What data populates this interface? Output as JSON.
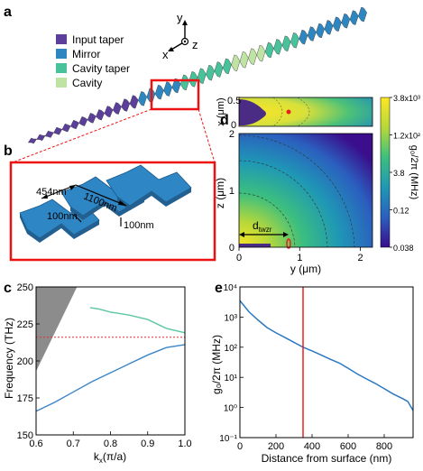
{
  "panels": {
    "a": {
      "label": "a",
      "legend": [
        {
          "name": "Input taper",
          "color": "#5b3f9a"
        },
        {
          "name": "Mirror",
          "color": "#2e86c1"
        },
        {
          "name": "Cavity taper",
          "color": "#48c29a"
        },
        {
          "name": "Cavity",
          "color": "#bfe3a3"
        }
      ],
      "axes": {
        "x": "x",
        "y": "y",
        "z": "z"
      }
    },
    "b": {
      "label": "b",
      "dims": {
        "a": "454nm",
        "b": "1100nm",
        "c": "100nm",
        "d": "100nm"
      }
    },
    "d": {
      "label": "d",
      "top_ylabel": "x (μm)",
      "top_yticks": [
        "0.5",
        "0"
      ],
      "ylabel": "z (μm)",
      "yticks": [
        "2",
        "1",
        "0"
      ],
      "xlabel": "y (μm)",
      "xticks": [
        "0",
        "1",
        "2"
      ],
      "annotation": "d",
      "annotation_sub": "twzr",
      "colorbar_label": "g₀/2π (MHz)",
      "colorbar_ticks": [
        "3.8x10³",
        "1.2x10²",
        "3.8",
        "0.12",
        "0.038"
      ],
      "colormap": [
        "#3a0e8c",
        "#2b5fbf",
        "#1f98b5",
        "#3cbf7e",
        "#b7d83a",
        "#fde624"
      ]
    }
  },
  "chart_data": [
    {
      "id": "c",
      "label": "c",
      "type": "line",
      "xlabel": "k",
      "xlabel_sub": "x",
      "xlabel_suffix": "(π/a)",
      "ylabel": "Frequency (THz)",
      "xlim": [
        0.6,
        1.0
      ],
      "ylim": [
        150,
        250
      ],
      "xticks": [
        "0.6",
        "0.7",
        "0.8",
        "0.9",
        "1.0"
      ],
      "yticks": [
        "150",
        "175",
        "200",
        "225",
        "250"
      ],
      "light_cone": {
        "x": [
          0.6,
          0.6,
          0.71
        ],
        "y": [
          193,
          250,
          250
        ],
        "color": "#8c8c8c"
      },
      "reference_line": {
        "y": 216,
        "color": "#e03030"
      },
      "series": [
        {
          "color": "#3a86c8",
          "x": [
            0.6,
            0.65,
            0.7,
            0.75,
            0.8,
            0.85,
            0.9,
            0.95,
            1.0
          ],
          "y": [
            166,
            172,
            179,
            186,
            192,
            198,
            204,
            209,
            211
          ]
        },
        {
          "color": "#5cc7a0",
          "x": [
            0.745,
            0.77,
            0.8,
            0.85,
            0.9,
            0.95,
            1.0
          ],
          "y": [
            236,
            235,
            233,
            231,
            228,
            222,
            219
          ]
        }
      ]
    },
    {
      "id": "e",
      "label": "e",
      "type": "line",
      "xlabel": "Distance from surface (nm)",
      "ylabel": "g₀/2π (MHz)",
      "xlim": [
        0,
        960
      ],
      "ylim_log10": [
        -1,
        4
      ],
      "xticks": [
        0,
        200,
        400,
        600,
        800
      ],
      "yticks": [
        "10⁴",
        "10³",
        "10²",
        "10¹",
        "10⁰",
        "10⁻¹"
      ],
      "marker_x": 350,
      "series": [
        {
          "color": "#2a78c2",
          "x": [
            0,
            50,
            100,
            150,
            200,
            250,
            300,
            350,
            400,
            450,
            500,
            550,
            600,
            650,
            700,
            750,
            800,
            850,
            900,
            930,
            960
          ],
          "y": [
            3500,
            1500,
            800,
            450,
            300,
            210,
            145,
            100,
            75,
            55,
            40,
            30,
            20,
            13,
            9,
            6.3,
            4.2,
            2.8,
            2.0,
            1.6,
            0.8
          ]
        }
      ]
    }
  ]
}
